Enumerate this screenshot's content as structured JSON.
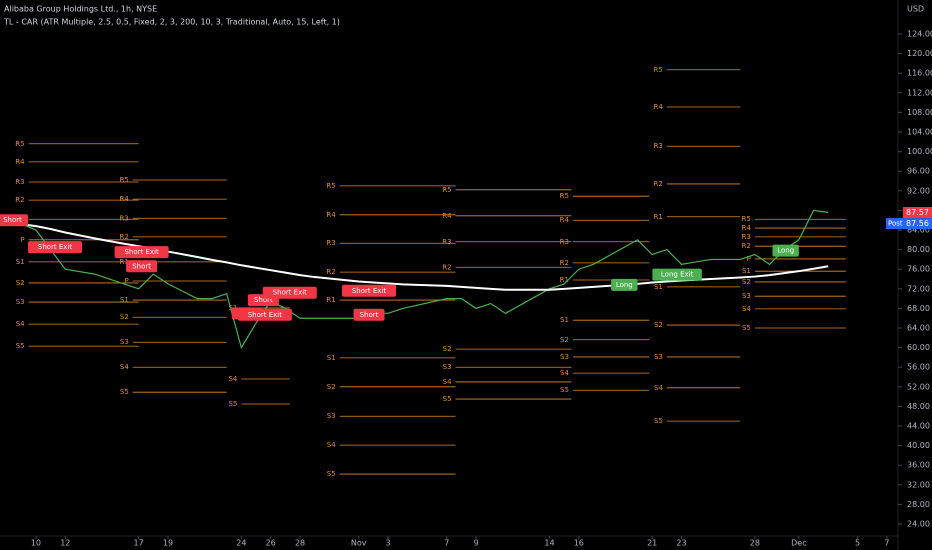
{
  "header": {
    "symbol": "Alibaba Group Holdings Ltd., 1h, NYSE",
    "indicator": "TL - CAR (ATR Multiple, 2.5, 0.5, Fixed, 2, 3, 200, 10, 3, Traditional, Auto, 15, Left, 1)",
    "currency": "USD"
  },
  "chart_data": {
    "type": "line",
    "xlim": [
      -2.45,
      58.55
    ],
    "ylim": [
      21.76,
      130.94
    ],
    "xticks": [
      {
        "value": 0,
        "label": "10"
      },
      {
        "value": 2,
        "label": "12"
      },
      {
        "value": 7,
        "label": "17"
      },
      {
        "value": 9,
        "label": "19"
      },
      {
        "value": 14,
        "label": "24"
      },
      {
        "value": 16,
        "label": "26"
      },
      {
        "value": 18,
        "label": "28"
      },
      {
        "value": 22,
        "label": "Nov"
      },
      {
        "value": 24,
        "label": "3"
      },
      {
        "value": 28,
        "label": "7"
      },
      {
        "value": 30,
        "label": "9"
      },
      {
        "value": 35,
        "label": "14"
      },
      {
        "value": 37,
        "label": "16"
      },
      {
        "value": 42,
        "label": "21"
      },
      {
        "value": 44,
        "label": "23"
      },
      {
        "value": 49,
        "label": "28"
      },
      {
        "value": 52,
        "label": "Dec"
      },
      {
        "value": 56,
        "label": "5"
      },
      {
        "value": 58,
        "label": "7"
      }
    ],
    "yticks": [
      {
        "value": 24,
        "label": "24.00"
      },
      {
        "value": 28,
        "label": "28.00"
      },
      {
        "value": 32,
        "label": "32.00"
      },
      {
        "value": 36,
        "label": "36.00"
      },
      {
        "value": 40,
        "label": "40.00"
      },
      {
        "value": 44,
        "label": "44.00"
      },
      {
        "value": 48,
        "label": "48.00"
      },
      {
        "value": 52,
        "label": "52.00"
      },
      {
        "value": 56,
        "label": "56.00"
      },
      {
        "value": 60,
        "label": "60.00"
      },
      {
        "value": 64,
        "label": "64.00"
      },
      {
        "value": 68,
        "label": "68.00"
      },
      {
        "value": 72,
        "label": "72.00"
      },
      {
        "value": 76,
        "label": "76.00"
      },
      {
        "value": 80,
        "label": "80.00"
      },
      {
        "value": 84,
        "label": "84.00"
      },
      {
        "value": 88,
        "label": "88.00"
      },
      {
        "value": 92,
        "label": "92.00"
      },
      {
        "value": 96,
        "label": "96.00"
      },
      {
        "value": 100,
        "label": "100.00"
      },
      {
        "value": 104,
        "label": "104.00"
      },
      {
        "value": 108,
        "label": "108.00"
      },
      {
        "value": 112,
        "label": "112.00"
      },
      {
        "value": 116,
        "label": "116.00"
      },
      {
        "value": 120,
        "label": "120.00"
      },
      {
        "value": 124,
        "label": "124.00"
      }
    ],
    "x": [
      -2,
      0,
      1,
      2,
      4,
      6,
      7,
      8,
      9,
      11,
      12,
      13,
      14,
      15,
      16,
      17,
      18,
      19,
      21,
      22,
      23,
      24,
      25,
      28,
      29,
      30,
      31,
      32,
      35,
      36,
      37,
      38,
      41,
      42,
      43,
      44,
      46,
      48,
      49,
      50,
      51,
      52,
      53,
      54
    ],
    "series": [
      {
        "color": "#4caf50",
        "values": [
          86.5,
          84,
          80,
          76,
          75,
          73,
          72,
          75,
          73,
          70,
          70,
          71,
          60,
          65,
          69.5,
          68,
          66,
          66,
          66,
          66,
          67,
          67,
          68,
          70,
          70,
          68,
          69,
          67,
          72,
          73,
          76,
          77,
          82,
          79,
          80,
          77,
          78,
          78,
          79,
          77,
          80,
          82,
          88,
          87.6
        ]
      },
      {
        "color": "#ffffff",
        "values": [
          85.6,
          84.8,
          84.2,
          83.5,
          82.3,
          81.2,
          80.7,
          80.2,
          79.6,
          78.5,
          77.9,
          77.4,
          76.8,
          76.3,
          75.8,
          75.3,
          74.8,
          74.4,
          73.8,
          73.5,
          73.3,
          73.1,
          72.9,
          72.6,
          72.4,
          72.2,
          72,
          71.8,
          71.8,
          72,
          72.2,
          72.4,
          73,
          73.3,
          73.5,
          73.7,
          74,
          74.3,
          74.5,
          74.8,
          75.2,
          75.6,
          76.1,
          76.6
        ]
      }
    ],
    "signals": [
      {
        "label": "Short",
        "x": -1.6,
        "y": 86,
        "color": "#f23645"
      },
      {
        "label": "Short Exit",
        "x": 1.3,
        "y": 80.5,
        "color": "#f23645"
      },
      {
        "label": "Short Exit",
        "x": 7.2,
        "y": 79.5,
        "color": "#f23645"
      },
      {
        "label": "Short",
        "x": 7.2,
        "y": 76.6,
        "color": "#f23645"
      },
      {
        "label": "Short",
        "x": 14.4,
        "y": 67,
        "color": "#f23645"
      },
      {
        "label": "Short",
        "x": 15.5,
        "y": 69.7,
        "color": "#f23645"
      },
      {
        "label": "Short Exit",
        "x": 17.3,
        "y": 71.2,
        "color": "#f23645"
      },
      {
        "label": "Short Exit",
        "x": 15.6,
        "y": 66.7,
        "color": "#f23645"
      },
      {
        "label": "Short Exit",
        "x": 22.7,
        "y": 71.6,
        "color": "#f23645"
      },
      {
        "label": "Short",
        "x": 22.7,
        "y": 66.7,
        "color": "#f23645"
      },
      {
        "label": "Long",
        "x": 40.1,
        "y": 72.8,
        "color": "#4caf50"
      },
      {
        "label": "Long Exit",
        "x": 43.7,
        "y": 74.9,
        "color": "#4caf50"
      },
      {
        "label": "Long",
        "x": 51.1,
        "y": 79.8,
        "color": "#4caf50"
      }
    ],
    "pivots": [
      {
        "x": [
          -0.5,
          7
        ],
        "levels": [
          {
            "name": "R5",
            "value": 101.6
          },
          {
            "name": "R4",
            "value": 97.9
          },
          {
            "name": "R3",
            "value": 93.8
          },
          {
            "name": "R2",
            "value": 90.1
          },
          {
            "name": "R1",
            "value": 86.2
          },
          {
            "name": "P",
            "value": 82
          },
          {
            "name": "S1",
            "value": 77.5
          },
          {
            "name": "S2",
            "value": 73.2
          },
          {
            "name": "S3",
            "value": 69.3
          },
          {
            "name": "S4",
            "value": 64.8
          },
          {
            "name": "S5",
            "value": 60.3
          }
        ]
      },
      {
        "x": [
          6.6,
          13
        ],
        "levels": [
          {
            "name": "R5",
            "value": 94.2
          },
          {
            "name": "R4",
            "value": 90.3
          },
          {
            "name": "R3",
            "value": 86.4
          },
          {
            "name": "R2",
            "value": 82.6
          },
          {
            "name": "R1",
            "value": 77.5
          },
          {
            "name": "P",
            "value": 73.6
          },
          {
            "name": "S1",
            "value": 69.7
          },
          {
            "name": "S2",
            "value": 66.2
          },
          {
            "name": "S3",
            "value": 61.1
          },
          {
            "name": "S4",
            "value": 56
          },
          {
            "name": "S5",
            "value": 50.9
          }
        ]
      },
      {
        "x": [
          14,
          17.3
        ],
        "levels": [
          {
            "name": "S1",
            "value": 68.1
          },
          {
            "name": "S4",
            "value": 53.6
          },
          {
            "name": "S5",
            "value": 48.5
          }
        ]
      },
      {
        "x": [
          20.7,
          28.6
        ],
        "levels": [
          {
            "name": "R5",
            "value": 93
          },
          {
            "name": "R4",
            "value": 87.1
          },
          {
            "name": "R3",
            "value": 81.3
          },
          {
            "name": "R2",
            "value": 75.4
          },
          {
            "name": "R1",
            "value": 69.7
          },
          {
            "name": "S1",
            "value": 57.9
          },
          {
            "name": "S2",
            "value": 52
          },
          {
            "name": "S3",
            "value": 46
          },
          {
            "name": "S4",
            "value": 40.1
          },
          {
            "name": "S5",
            "value": 34.2
          }
        ]
      },
      {
        "x": [
          28.6,
          36.5
        ],
        "levels": [
          {
            "name": "R5",
            "value": 92.2
          },
          {
            "name": "R4",
            "value": 86.9
          },
          {
            "name": "R3",
            "value": 81.6
          },
          {
            "name": "R2",
            "value": 76.4
          },
          {
            "name": "S2",
            "value": 59.7
          },
          {
            "name": "S3",
            "value": 56
          },
          {
            "name": "S4",
            "value": 53
          },
          {
            "name": "S5",
            "value": 49.5
          }
        ]
      },
      {
        "x": [
          36.6,
          41.8
        ],
        "levels": [
          {
            "name": "R5",
            "value": 90.9
          },
          {
            "name": "R4",
            "value": 86
          },
          {
            "name": "R3",
            "value": 81.6
          },
          {
            "name": "R2",
            "value": 77.3
          },
          {
            "name": "R1",
            "value": 73.8
          },
          {
            "name": "S1",
            "value": 65.6
          },
          {
            "name": "S2",
            "value": 61.6
          },
          {
            "name": "S3",
            "value": 58.1
          },
          {
            "name": "S4",
            "value": 54.8
          },
          {
            "name": "S5",
            "value": 51.3
          }
        ]
      },
      {
        "x": [
          43,
          48
        ],
        "levels": [
          {
            "name": "R5",
            "value": 116.7
          },
          {
            "name": "R4",
            "value": 109.1
          },
          {
            "name": "R3",
            "value": 101.1
          },
          {
            "name": "R2",
            "value": 93.4
          },
          {
            "name": "R1",
            "value": 86.7
          },
          {
            "name": "S1",
            "value": 72.4
          },
          {
            "name": "S2",
            "value": 64.6
          },
          {
            "name": "S3",
            "value": 58.1
          },
          {
            "name": "S4",
            "value": 51.8
          },
          {
            "name": "S5",
            "value": 45
          }
        ]
      },
      {
        "x": [
          49,
          55.2
        ],
        "levels": [
          {
            "name": "R5",
            "value": 86.2
          },
          {
            "name": "R4",
            "value": 84.4
          },
          {
            "name": "R3",
            "value": 82.6
          },
          {
            "name": "R2",
            "value": 80.7
          },
          {
            "name": "P",
            "value": 78.1
          },
          {
            "name": "S1",
            "value": 75.6
          },
          {
            "name": "S2",
            "value": 73.4
          },
          {
            "name": "S3",
            "value": 70.5
          },
          {
            "name": "S4",
            "value": 67.9
          },
          {
            "name": "S5",
            "value": 64
          }
        ]
      }
    ],
    "pivot_color": "#e08a2c",
    "price_tags": [
      {
        "value": 87.57,
        "label": "87.57",
        "color": "#f23645"
      },
      {
        "name": "Post",
        "value": 87.56,
        "label": "87.56",
        "color": "#2962ff"
      }
    ]
  }
}
